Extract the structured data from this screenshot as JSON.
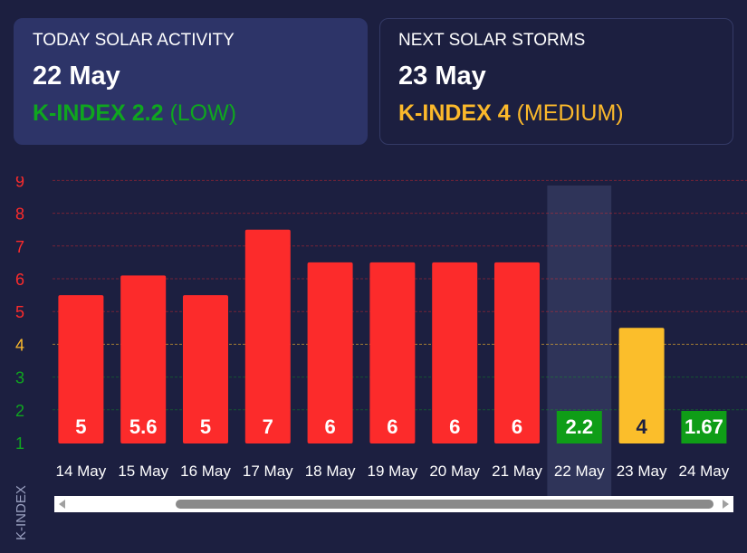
{
  "today": {
    "title": "TODAY SOLAR ACTIVITY",
    "date": "22 May",
    "k_value": "K-INDEX 2.2",
    "k_level": "(LOW)",
    "color": "#0fa61f"
  },
  "next": {
    "title": "NEXT SOLAR STORMS",
    "date": "23 May",
    "k_value": "K-INDEX 4",
    "k_level": "(MEDIUM)",
    "color": "#fbb92b"
  },
  "colors": {
    "red": "#fc2b2b",
    "yellow": "#fbbe2b",
    "green": "#0f9d17",
    "highlight": "#2f3459",
    "bg": "#1c1f40"
  },
  "chart_data": {
    "type": "bar",
    "categories": [
      "14 May",
      "15 May",
      "16 May",
      "17 May",
      "18 May",
      "19 May",
      "20 May",
      "21 May",
      "22 May",
      "23 May",
      "24 May"
    ],
    "values": [
      5,
      5.6,
      5,
      7,
      6,
      6,
      6,
      6,
      2.2,
      4,
      1.67
    ],
    "value_labels": [
      "5",
      "5.6",
      "5",
      "7",
      "6",
      "6",
      "6",
      "6",
      "2.2",
      "4",
      "1.67"
    ],
    "ylabel": "K-INDEX",
    "yticks": [
      1,
      2,
      3,
      4,
      5,
      6,
      7,
      8,
      9
    ],
    "ylim": [
      1,
      9
    ],
    "grid": true,
    "highlight_category": "22 May",
    "tick_colors": {
      "low": "#0fa61f",
      "medium": "#fbb92b",
      "high": "#fc2b2b"
    }
  }
}
